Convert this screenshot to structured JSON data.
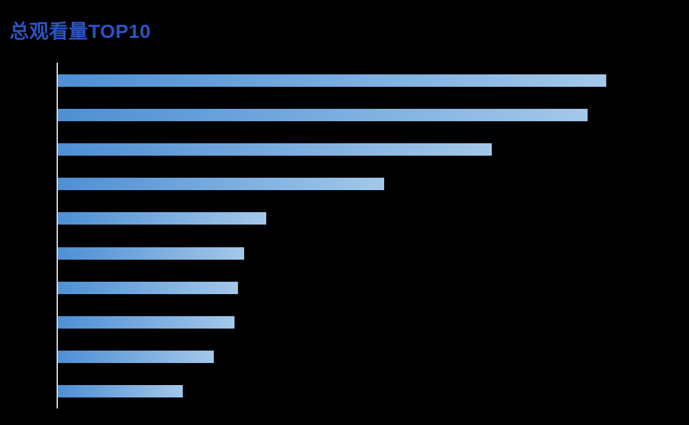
{
  "page": {
    "background_color": "#000000"
  },
  "chart_data": {
    "type": "bar",
    "orientation": "horizontal",
    "title": "总观看量TOP10",
    "title_color": "#2B53C6",
    "xlabel": "",
    "ylabel": "",
    "ranks": [
      1,
      2,
      3,
      4,
      5,
      6,
      7,
      8,
      9,
      10
    ],
    "values_pct_of_max": [
      100,
      96.6,
      79.1,
      59.5,
      38.0,
      34.0,
      32.8,
      32.2,
      28.4,
      22.8
    ],
    "value_labels_shown": false,
    "category_labels_shown": false,
    "tick_labels_shown": false,
    "grid": false,
    "legend": false,
    "axis_line_color": "#D9D9D9",
    "bar_gradient_start": "#4E8FD4",
    "bar_gradient_end": "#A3C8E9"
  }
}
